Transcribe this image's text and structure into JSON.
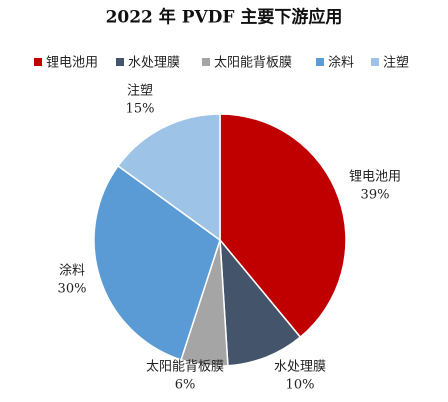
{
  "chart_data": {
    "type": "pie",
    "title": "2022 年 PVDF 主要下游应用",
    "categories": [
      "锂电池用",
      "水处理膜",
      "太阳能背板膜",
      "涂料",
      "注塑"
    ],
    "values": [
      39,
      10,
      6,
      30,
      15
    ],
    "value_labels": [
      "39%",
      "10%",
      "6%",
      "30%",
      "15%"
    ],
    "colors": [
      "#c00000",
      "#44546a",
      "#a5a5a5",
      "#5b9bd5",
      "#9dc3e6"
    ],
    "legend": "top"
  }
}
